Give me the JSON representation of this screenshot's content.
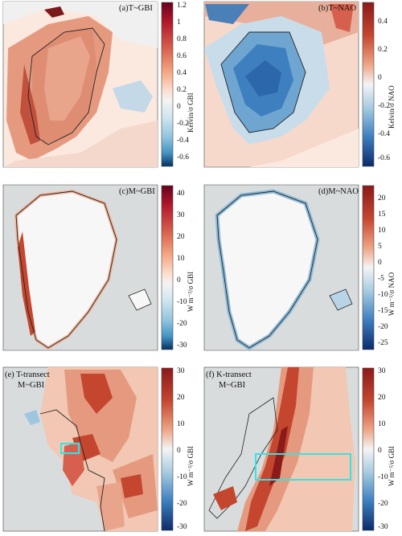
{
  "panels": {
    "a": {
      "title": "(a)T~GBI",
      "cbar_label": "Kelvin/σ GBI",
      "ticks": [
        "1.2",
        "1",
        "0.8",
        "0.6",
        "0.4",
        "0.2",
        "0",
        "-0.2",
        "-0.4",
        "-0.6"
      ]
    },
    "b": {
      "title": "(b)T~NAO",
      "cbar_label": "Kelvin/σ NAO",
      "ticks": [
        "0.4",
        "0.2",
        "0",
        "-0.2",
        "-0.4",
        "-0.6"
      ]
    },
    "c": {
      "title": "(c)M~GBI",
      "cbar_label": "W m⁻²/σ GBI",
      "ticks": [
        "40",
        "30",
        "20",
        "10",
        "0",
        "-10",
        "-20",
        "-30"
      ]
    },
    "d": {
      "title": "(d)M~NAO",
      "cbar_label": "W m⁻²/σ NAO",
      "ticks": [
        "20",
        "15",
        "10",
        "5",
        "0",
        "-5",
        "-10",
        "-15",
        "-20",
        "-25"
      ]
    },
    "e": {
      "title": "(e) T-transect",
      "subtitle": "M~GBI",
      "cbar_label": "W m⁻²/σ GBI",
      "ticks": [
        "30",
        "20",
        "10",
        "0",
        "-10",
        "-20",
        "-30"
      ]
    },
    "f": {
      "title": "(f) K-transect",
      "subtitle": "M~GBI",
      "cbar_label": "W m⁻²/σ GBI",
      "ticks": [
        "30",
        "20",
        "10",
        "0",
        "-10",
        "-20",
        "-30"
      ]
    }
  },
  "colors": {
    "ocean_grey": "#d9dcdd",
    "highlight_box": "#2ee6e6"
  }
}
